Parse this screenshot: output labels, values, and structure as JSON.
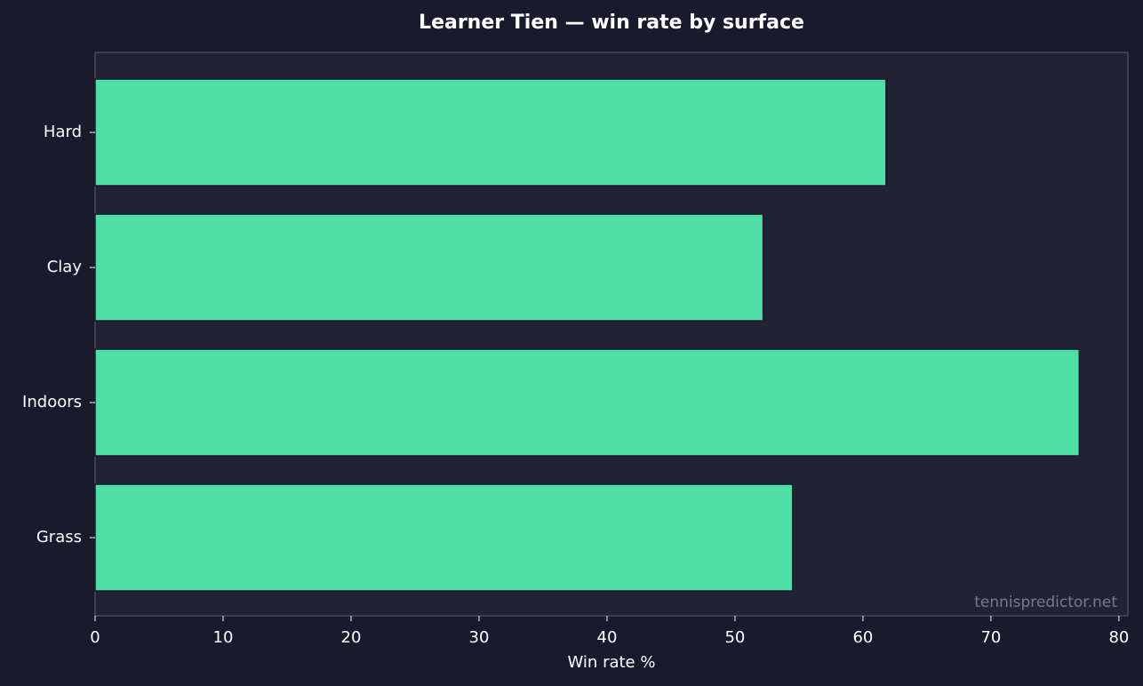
{
  "chart_data": {
    "type": "barh",
    "title": "Learner Tien — win rate by surface",
    "categories": [
      "Hard",
      "Clay",
      "Indoors",
      "Grass"
    ],
    "values": [
      61.8,
      52.2,
      76.9,
      54.5
    ],
    "color": "#4ddfa6",
    "xlabel": "Win rate %",
    "xlim": [
      0,
      80.7
    ],
    "xticks": [
      0,
      10,
      20,
      30,
      40,
      50,
      60,
      70,
      80
    ],
    "grid": false,
    "watermark": "tennispredictor.net"
  }
}
